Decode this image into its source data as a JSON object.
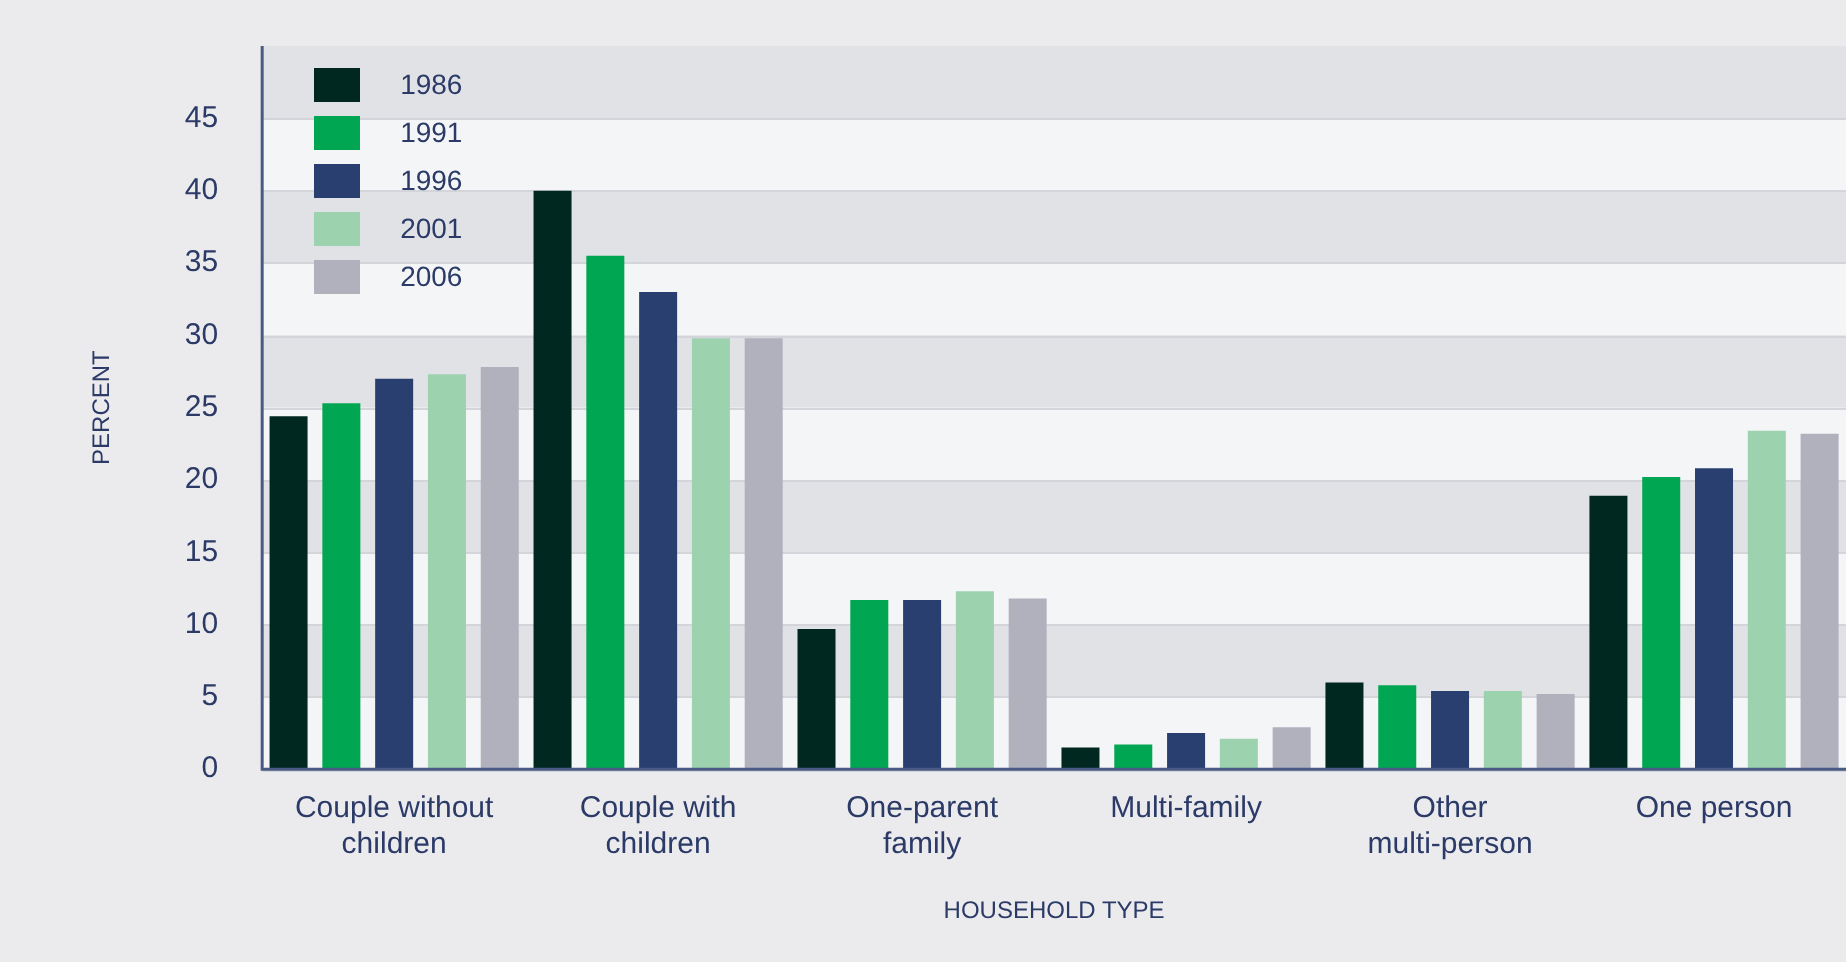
{
  "chart_data": {
    "type": "bar",
    "xlabel": "HOUSEHOLD TYPE",
    "ylabel": "PERCENT",
    "categories": [
      "Couple without children",
      "Couple with children",
      "One-parent family",
      "Multi-family",
      "Other multi-person",
      "One person"
    ],
    "series": [
      {
        "name": "1986",
        "color": "#002820",
        "values": [
          24.4,
          40,
          9.7,
          1.5,
          6,
          18.9
        ]
      },
      {
        "name": "1991",
        "color": "#00a651",
        "values": [
          25.3,
          35.5,
          11.7,
          1.7,
          5.8,
          20.2
        ]
      },
      {
        "name": "1996",
        "color": "#293f6f",
        "values": [
          27,
          33,
          11.7,
          2.5,
          5.4,
          20.8
        ]
      },
      {
        "name": "2001",
        "color": "#9dd2ae",
        "values": [
          27.3,
          29.8,
          12.3,
          2.1,
          5.4,
          23.4
        ]
      },
      {
        "name": "2006",
        "color": "#b0b1bd",
        "values": [
          27.8,
          29.8,
          11.8,
          2.9,
          5.2,
          23.2
        ]
      }
    ],
    "ylim": [
      0,
      50
    ],
    "yticks": [
      0,
      5,
      10,
      15,
      20,
      25,
      30,
      35,
      40,
      45
    ],
    "grid": true,
    "legend": "top left"
  }
}
